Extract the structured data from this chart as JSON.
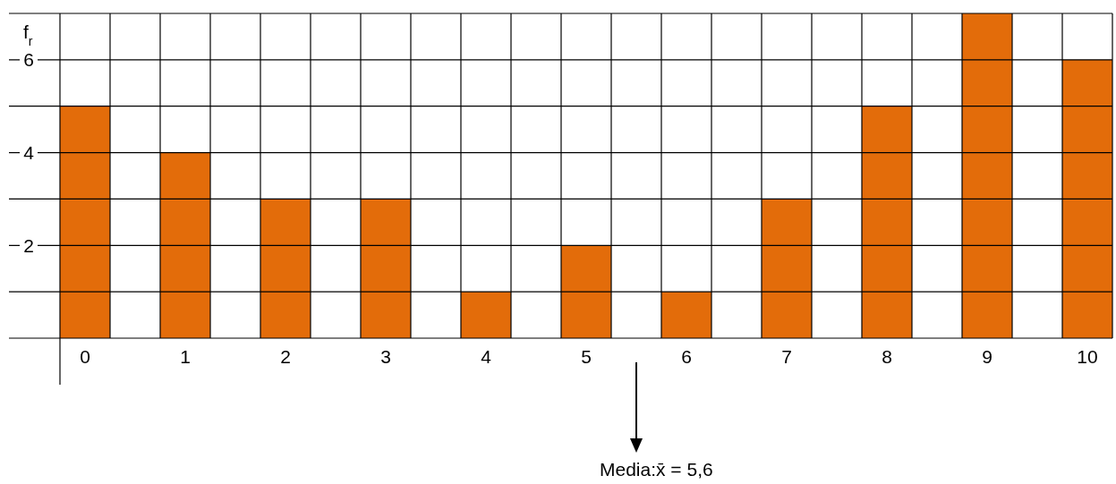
{
  "chart_data": {
    "type": "bar",
    "ylabel": "f$_{r}$",
    "categories": [
      "0",
      "1",
      "2",
      "3",
      "4",
      "5",
      "6",
      "7",
      "8",
      "9",
      "10"
    ],
    "values": [
      5,
      4,
      3,
      3,
      1,
      2,
      1,
      3,
      5,
      7,
      6
    ],
    "color": "#e36c0a",
    "ylim": [
      0,
      7
    ],
    "yticks": [
      2,
      4,
      6
    ],
    "grid": true,
    "annotations": [
      "Media:x̄ = 5,6"
    ]
  }
}
